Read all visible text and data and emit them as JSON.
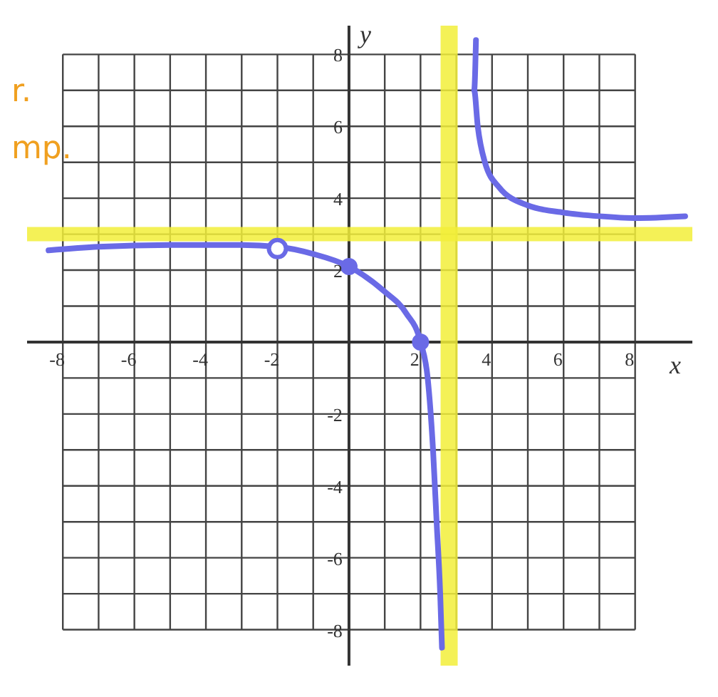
{
  "chart_data": {
    "type": "line",
    "xlabel": "x",
    "ylabel": "y",
    "annotations": [
      "r.",
      "mp."
    ],
    "xlim": [
      -9,
      9.6
    ],
    "ylim": [
      -9,
      8.8
    ],
    "xticks": [
      {
        "value": -8,
        "label": "-8"
      },
      {
        "value": -7,
        "label": null
      },
      {
        "value": -6,
        "label": "-6"
      },
      {
        "value": -5,
        "label": null
      },
      {
        "value": -4,
        "label": "-4"
      },
      {
        "value": -3,
        "label": null
      },
      {
        "value": -2,
        "label": "-2"
      },
      {
        "value": -1,
        "label": null
      },
      {
        "value": 0,
        "label": null
      },
      {
        "value": 1,
        "label": null
      },
      {
        "value": 2,
        "label": "2"
      },
      {
        "value": 3,
        "label": null
      },
      {
        "value": 4,
        "label": "4"
      },
      {
        "value": 5,
        "label": null
      },
      {
        "value": 6,
        "label": "6"
      },
      {
        "value": 7,
        "label": null
      },
      {
        "value": 8,
        "label": "8"
      }
    ],
    "yticks": [
      {
        "value": -8,
        "label": "-8"
      },
      {
        "value": -7,
        "label": null
      },
      {
        "value": -6,
        "label": "-6"
      },
      {
        "value": -5,
        "label": null
      },
      {
        "value": -4,
        "label": "-4"
      },
      {
        "value": -3,
        "label": null
      },
      {
        "value": -2,
        "label": "-2"
      },
      {
        "value": -1,
        "label": null
      },
      {
        "value": 0,
        "label": null
      },
      {
        "value": 1,
        "label": null
      },
      {
        "value": 2,
        "label": "2"
      },
      {
        "value": 3,
        "label": null
      },
      {
        "value": 4,
        "label": "4"
      },
      {
        "value": 5,
        "label": null
      },
      {
        "value": 6,
        "label": "6"
      },
      {
        "value": 7,
        "label": null
      },
      {
        "value": 8,
        "label": "8"
      }
    ],
    "grid": true,
    "line_style": "solid",
    "ref_lines": [
      {
        "axis": "y",
        "value": 3,
        "color": "#f2ee3a"
      },
      {
        "axis": "x",
        "value": 2.8,
        "color": "#f2ee3a"
      }
    ],
    "series": [
      {
        "color": "#6a6ae6",
        "marker": "none",
        "x": [
          -8.4,
          -7,
          -5,
          -3,
          -2,
          -1,
          0,
          1,
          1.6,
          2,
          2.2,
          2.35,
          2.45,
          2.55,
          2.6
        ],
        "values": [
          2.55,
          2.65,
          2.7,
          2.7,
          2.65,
          2.45,
          2.1,
          1.4,
          0.8,
          0,
          -1,
          -3,
          -5,
          -7,
          -8.5
        ]
      },
      {
        "color": "#6a6ae6",
        "marker": "none",
        "x": [
          3.55,
          3.5,
          3.6,
          3.8,
          4.2,
          5,
          6,
          7,
          8,
          9.4
        ],
        "values": [
          8.4,
          7,
          6,
          5,
          4.3,
          3.8,
          3.6,
          3.5,
          3.45,
          3.5
        ]
      },
      {
        "color": "#6a6ae6",
        "marker": "circle",
        "x": [
          -2
        ],
        "values": [
          2.6
        ]
      },
      {
        "type": "scatter",
        "color": "#6a6ae6",
        "marker": "circle",
        "x": [
          0,
          2
        ],
        "values": [
          2.1,
          0
        ]
      }
    ]
  }
}
